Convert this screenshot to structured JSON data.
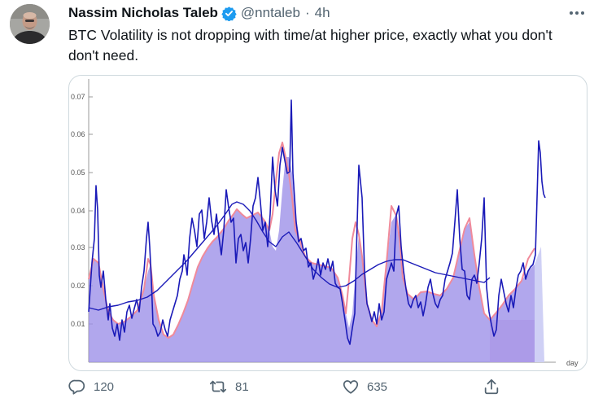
{
  "tweet": {
    "author_name": "Nassim Nicholas Taleb",
    "handle": "@nntaleb",
    "separator": "·",
    "timestamp": "4h",
    "text": "BTC Volatility is not dropping with time/at higher price, exactly what you don't don't need.",
    "verified": true
  },
  "chart": {
    "x_axis_label": "day",
    "y_ticks": [
      "0.07",
      "0.06",
      "0.05",
      "0.04",
      "0.03",
      "0.02",
      "0.01"
    ]
  },
  "actions": {
    "reply_count": "120",
    "retweet_count": "81",
    "like_count": "635"
  },
  "icons": {
    "verified": "verified-badge-icon",
    "more": "more-options-icon",
    "reply": "reply-icon",
    "retweet": "retweet-icon",
    "like": "like-icon",
    "share": "share-icon"
  },
  "colors": {
    "verified": "#1d9bf0",
    "secondary_text": "#536471",
    "chart_line": "#1a1ab8",
    "chart_smooth": "#f08a9a",
    "chart_fill": "#9b8ee8"
  }
}
